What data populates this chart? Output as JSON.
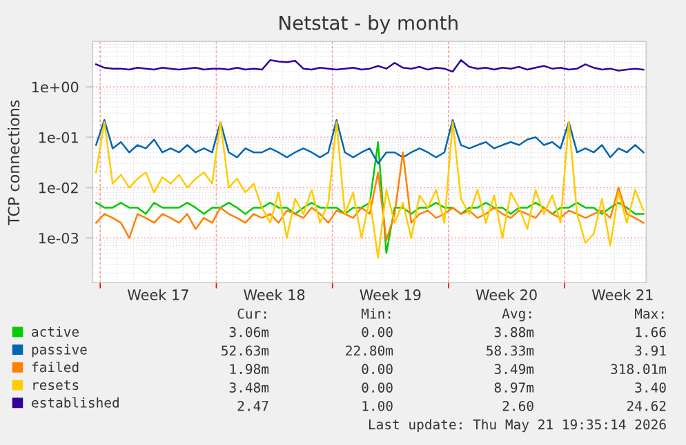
{
  "chart_data": {
    "type": "line",
    "title": "Netstat - by month",
    "ylabel": "TCP connections",
    "x": [
      "2026-04-19T18:00",
      "2026-04-20T06:00",
      "2026-04-20T18:00",
      "2026-04-21T06:00",
      "2026-04-21T18:00",
      "2026-04-22T06:00",
      "2026-04-22T18:00",
      "2026-04-23T06:00",
      "2026-04-23T18:00",
      "2026-04-24T06:00",
      "2026-04-24T18:00",
      "2026-04-25T06:00",
      "2026-04-25T18:00",
      "2026-04-26T06:00",
      "2026-04-26T18:00",
      "2026-04-27T06:00",
      "2026-04-27T18:00",
      "2026-04-28T06:00",
      "2026-04-28T18:00",
      "2026-04-29T06:00",
      "2026-04-29T18:00",
      "2026-04-30T06:00",
      "2026-04-30T18:00",
      "2026-05-01T06:00",
      "2026-05-01T18:00",
      "2026-05-02T06:00",
      "2026-05-02T18:00",
      "2026-05-03T06:00",
      "2026-05-03T18:00",
      "2026-05-04T06:00",
      "2026-05-04T18:00",
      "2026-05-05T06:00",
      "2026-05-05T18:00",
      "2026-05-06T06:00",
      "2026-05-06T18:00",
      "2026-05-07T06:00",
      "2026-05-07T18:00",
      "2026-05-08T06:00",
      "2026-05-08T18:00",
      "2026-05-09T06:00",
      "2026-05-09T18:00",
      "2026-05-10T06:00",
      "2026-05-10T18:00",
      "2026-05-11T06:00",
      "2026-05-11T18:00",
      "2026-05-12T06:00",
      "2026-05-12T18:00",
      "2026-05-13T06:00",
      "2026-05-13T18:00",
      "2026-05-14T06:00",
      "2026-05-14T18:00",
      "2026-05-15T06:00",
      "2026-05-15T18:00",
      "2026-05-16T06:00",
      "2026-05-16T18:00",
      "2026-05-17T06:00",
      "2026-05-17T18:00",
      "2026-05-18T06:00",
      "2026-05-18T18:00",
      "2026-05-19T06:00",
      "2026-05-19T18:00",
      "2026-05-20T06:00",
      "2026-05-20T18:00",
      "2026-05-21T06:00",
      "2026-05-21T18:00",
      "2026-05-22T06:00",
      "2026-05-22T18:00"
    ],
    "series": [
      {
        "name": "active",
        "color": "#00cc00",
        "values": [
          0.005,
          0.004,
          0.004,
          0.005,
          0.004,
          0.004,
          0.003,
          0.005,
          0.004,
          0.004,
          0.004,
          0.005,
          0.004,
          0.003,
          0.004,
          0.004,
          0.005,
          0.004,
          0.003,
          0.004,
          0.004,
          0.005,
          0.004,
          0.004,
          0.003,
          0.004,
          0.005,
          0.004,
          0.004,
          0.004,
          0.003,
          0.004,
          0.004,
          0.005,
          0.08,
          0.0005,
          0.004,
          0.004,
          0.003,
          0.004,
          0.004,
          0.005,
          0.004,
          0.004,
          0.003,
          0.004,
          0.004,
          0.005,
          0.004,
          0.004,
          0.003,
          0.004,
          0.004,
          0.005,
          0.004,
          0.003,
          0.004,
          0.004,
          0.005,
          0.004,
          0.004,
          0.003,
          0.004,
          0.005,
          0.004,
          0.003,
          0.003
        ]
      },
      {
        "name": "passive",
        "color": "#0066b3",
        "values": [
          0.07,
          0.22,
          0.06,
          0.08,
          0.05,
          0.07,
          0.06,
          0.09,
          0.05,
          0.06,
          0.05,
          0.07,
          0.05,
          0.06,
          0.05,
          0.2,
          0.05,
          0.04,
          0.06,
          0.05,
          0.05,
          0.06,
          0.05,
          0.04,
          0.05,
          0.06,
          0.05,
          0.04,
          0.05,
          0.22,
          0.05,
          0.04,
          0.05,
          0.06,
          0.03,
          0.05,
          0.05,
          0.04,
          0.05,
          0.06,
          0.05,
          0.04,
          0.05,
          0.22,
          0.07,
          0.06,
          0.07,
          0.08,
          0.06,
          0.07,
          0.08,
          0.07,
          0.09,
          0.1,
          0.07,
          0.08,
          0.06,
          0.2,
          0.05,
          0.06,
          0.05,
          0.07,
          0.04,
          0.06,
          0.05,
          0.07,
          0.05
        ]
      },
      {
        "name": "failed",
        "color": "#ff8000",
        "values": [
          0.002,
          0.003,
          0.0025,
          0.002,
          0.001,
          0.003,
          0.0025,
          0.002,
          0.003,
          0.0025,
          0.002,
          0.003,
          0.0015,
          0.0025,
          0.002,
          0.004,
          0.003,
          0.0025,
          0.002,
          0.003,
          0.0025,
          0.003,
          0.002,
          0.0035,
          0.003,
          0.0025,
          0.004,
          0.003,
          0.002,
          0.0035,
          0.003,
          0.0025,
          0.004,
          0.003,
          0.02,
          0.0009,
          0.003,
          0.05,
          0.002,
          0.003,
          0.0035,
          0.0025,
          0.003,
          0.004,
          0.003,
          0.0035,
          0.0025,
          0.003,
          0.004,
          0.003,
          0.0025,
          0.0035,
          0.003,
          0.0025,
          0.004,
          0.003,
          0.0025,
          0.0035,
          0.003,
          0.0025,
          0.003,
          0.0035,
          0.0025,
          0.01,
          0.003,
          0.0025,
          0.002
        ]
      },
      {
        "name": "resets",
        "color": "#ffcc00",
        "values": [
          0.02,
          0.2,
          0.012,
          0.018,
          0.01,
          0.015,
          0.02,
          0.008,
          0.016,
          0.012,
          0.018,
          0.01,
          0.015,
          0.02,
          0.012,
          0.2,
          0.01,
          0.015,
          0.008,
          0.012,
          0.004,
          0.002,
          0.008,
          0.001,
          0.006,
          0.003,
          0.009,
          0.002,
          0.005,
          0.2,
          0.003,
          0.008,
          0.001,
          0.006,
          0.0004,
          0.009,
          0.002,
          0.005,
          0.001,
          0.007,
          0.004,
          0.009,
          0.002,
          0.2,
          0.006,
          0.003,
          0.009,
          0.002,
          0.007,
          0.001,
          0.008,
          0.004,
          0.0015,
          0.009,
          0.003,
          0.007,
          0.002,
          0.2,
          0.003,
          0.0008,
          0.0012,
          0.006,
          0.0007,
          0.008,
          0.002,
          0.009,
          0.0035
        ]
      },
      {
        "name": "established",
        "color": "#330099",
        "values": [
          2.8,
          2.4,
          2.3,
          2.3,
          2.2,
          2.4,
          2.3,
          2.2,
          2.4,
          2.3,
          2.2,
          2.3,
          2.4,
          2.2,
          2.3,
          2.3,
          2.2,
          2.4,
          2.2,
          2.3,
          2.2,
          3.4,
          3.2,
          3.1,
          3.3,
          2.3,
          2.2,
          2.4,
          2.3,
          2.2,
          2.3,
          2.4,
          2.2,
          2.3,
          2.6,
          2.3,
          3.0,
          2.4,
          2.3,
          2.5,
          2.2,
          2.4,
          2.3,
          2.0,
          3.4,
          2.5,
          2.3,
          2.4,
          2.2,
          2.4,
          2.3,
          2.5,
          2.2,
          2.4,
          2.6,
          2.3,
          2.4,
          2.2,
          2.3,
          2.8,
          2.4,
          2.2,
          2.3,
          2.1,
          2.2,
          2.3,
          2.2
        ]
      }
    ],
    "log": "y",
    "ylim": [
      0.00013,
      8
    ],
    "yticks": [
      {
        "value": 0.001,
        "label": "1e-03"
      },
      {
        "value": 0.01,
        "label": "1e-02"
      },
      {
        "value": 0.1,
        "label": "1e-01"
      },
      {
        "value": 1,
        "label": "1e+00"
      }
    ],
    "xlim": [
      "2026-04-19T13:00",
      "2026-05-22T22:00"
    ],
    "xticks": [
      {
        "value": "2026-04-20T00:00",
        "label": null
      },
      {
        "value": "2026-04-23T12:00",
        "label": "Week 17"
      },
      {
        "value": "2026-04-27T00:00",
        "label": null
      },
      {
        "value": "2026-04-30T12:00",
        "label": "Week 18"
      },
      {
        "value": "2026-05-04T00:00",
        "label": null
      },
      {
        "value": "2026-05-07T12:00",
        "label": "Week 19"
      },
      {
        "value": "2026-05-11T00:00",
        "label": null
      },
      {
        "value": "2026-05-14T12:00",
        "label": "Week 20"
      },
      {
        "value": "2026-05-18T00:00",
        "label": null
      },
      {
        "value": "2026-05-21T12:00",
        "label": "Week 21"
      }
    ],
    "grid": true,
    "legend": "bottom left",
    "marker": "none",
    "line_style": "solid",
    "annotations": [
      "Cur:",
      "Min:",
      "Avg:",
      "Max:",
      "3.06m",
      "0.00",
      "3.88m",
      "1.66",
      "52.63m",
      "22.80m",
      "58.33m",
      "3.91",
      "1.98m",
      "0.00",
      "3.49m",
      "318.01m",
      "3.48m",
      "0.00",
      "8.97m",
      "3.40",
      "2.47",
      "1.00",
      "2.60",
      "24.62",
      "Last update: Thu May 21 19:35:14 2026"
    ]
  }
}
